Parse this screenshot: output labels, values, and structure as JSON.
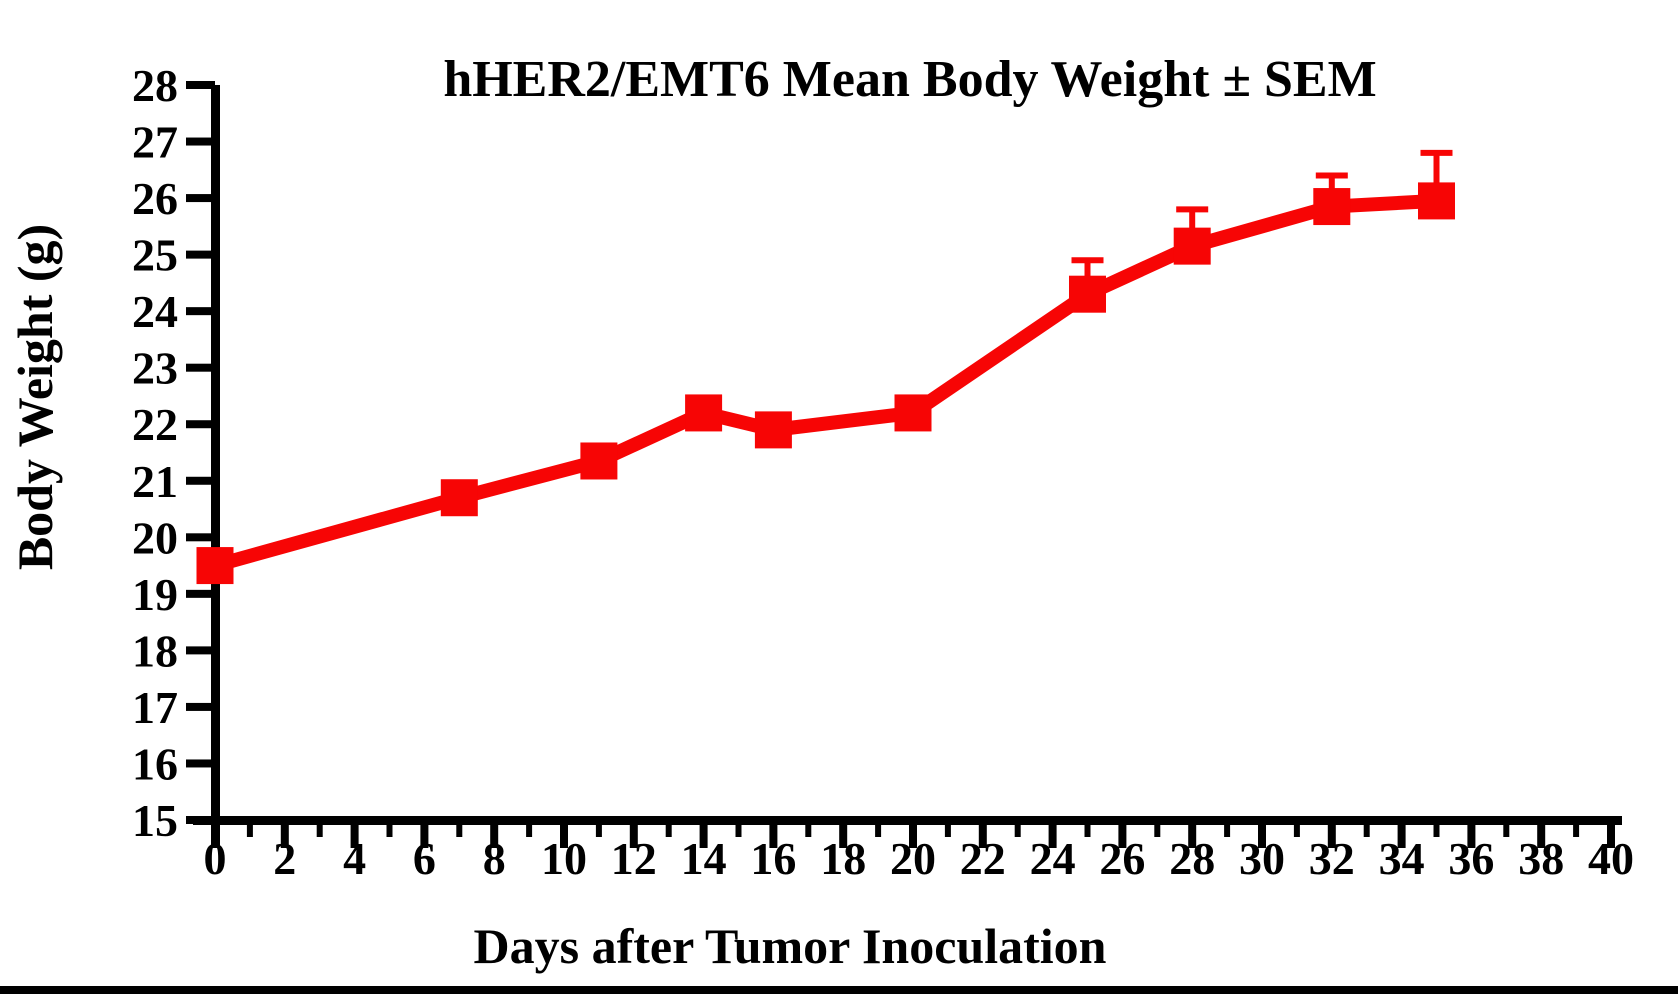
{
  "page": {
    "background_color": "#ffffff",
    "bottom_bar_color": "#000000"
  },
  "chart_data": {
    "type": "line",
    "title": "hHER2/EMT6 Mean Body Weight ± SEM",
    "xlabel": "Days after Tumor Inoculation",
    "ylabel": "Body Weight (g)",
    "x": [
      0,
      7,
      11,
      14,
      16,
      20,
      25,
      28,
      32,
      35
    ],
    "series": [
      {
        "name": "hHER2/EMT6 mean body weight",
        "values": [
          19.5,
          20.7,
          21.35,
          22.2,
          21.9,
          22.2,
          24.3,
          25.15,
          25.85,
          25.95
        ],
        "sem_upper": [
          null,
          null,
          null,
          null,
          null,
          null,
          0.6,
          0.65,
          0.55,
          0.85
        ],
        "color": "#f70505",
        "marker": "square",
        "line_width": 14
      }
    ],
    "xlim": [
      0,
      40
    ],
    "ylim": [
      15,
      28
    ],
    "x_major_tick_step": 2,
    "x_minor_tick_step": 1,
    "y_tick_step": 1,
    "x_tick_labels": [
      "0",
      "2",
      "4",
      "6",
      "8",
      "10",
      "12",
      "14",
      "16",
      "18",
      "20",
      "22",
      "24",
      "26",
      "28",
      "30",
      "32",
      "34",
      "36",
      "38",
      "40"
    ],
    "y_tick_labels": [
      "15",
      "16",
      "17",
      "18",
      "19",
      "20",
      "21",
      "22",
      "23",
      "24",
      "25",
      "26",
      "27",
      "28"
    ],
    "grid": false,
    "legend": "none",
    "axis_color": "#000000",
    "error_bars": "upper-only"
  }
}
